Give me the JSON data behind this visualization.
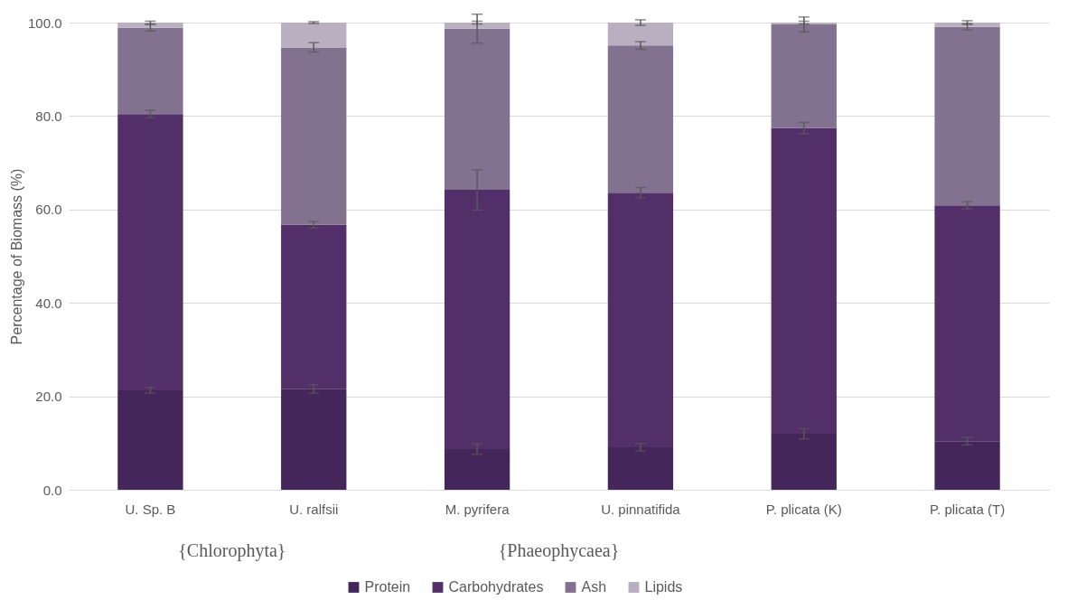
{
  "chart_data": {
    "type": "bar",
    "stacked": true,
    "ylabel": "Percentage of Biomass (%)",
    "categories": [
      "U. Sp. B",
      "U. ralfsii",
      "M. pyrifera",
      "U. pinnatifida",
      "P. plicata (K)",
      "P. plicata (T)"
    ],
    "series": [
      {
        "name": "Protein",
        "color": "#44265a",
        "values": [
          21.3,
          21.6,
          8.7,
          9.1,
          12.0,
          10.4
        ],
        "errors": [
          0.6,
          0.9,
          1.1,
          0.8,
          1.1,
          0.8
        ]
      },
      {
        "name": "Carbohydrates",
        "color": "#532f6a",
        "values": [
          59.1,
          35.1,
          55.5,
          54.5,
          65.4,
          50.5
        ],
        "errors": [
          0.8,
          0.7,
          4.3,
          1.1,
          1.2,
          0.8
        ]
      },
      {
        "name": "Ash",
        "color": "#83728f",
        "values": [
          18.5,
          38.0,
          34.5,
          31.5,
          22.2,
          38.2
        ],
        "errors": [
          0.7,
          1.0,
          3.1,
          0.8,
          1.6,
          0.7
        ]
      },
      {
        "name": "Lipids",
        "color": "#b8b0c0",
        "values": [
          1.1,
          5.3,
          1.3,
          4.9,
          0.4,
          0.9
        ],
        "errors": [
          0.3,
          0.2,
          0.3,
          0.6,
          0.3,
          0.4
        ]
      }
    ],
    "ylim": [
      0,
      100
    ],
    "yticks": [
      {
        "value": 0,
        "label": "0.0"
      },
      {
        "value": 20,
        "label": "20.0"
      },
      {
        "value": 40,
        "label": "40.0"
      },
      {
        "value": 60,
        "label": "60.0"
      },
      {
        "value": 80,
        "label": "80.0"
      },
      {
        "value": 100,
        "label": "100.0"
      }
    ],
    "grid": "y",
    "legend": "bottom",
    "annotations": [
      "{Chlorophyta}",
      "{Phaeophycaea}"
    ]
  }
}
